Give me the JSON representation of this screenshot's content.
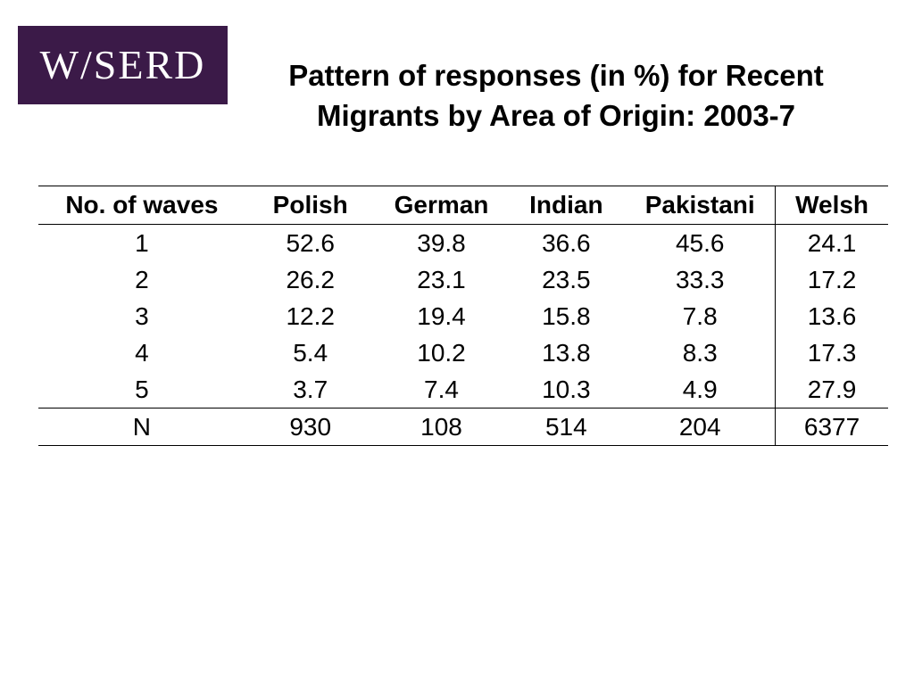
{
  "logo": {
    "text": "W/SERD"
  },
  "title": {
    "line1": "Pattern of responses (in %) for Recent",
    "line2": "Migrants by Area of Origin: 2003-7"
  },
  "table": {
    "headers": [
      "No. of waves",
      "Polish",
      "German",
      "Indian",
      "Pakistani",
      "Welsh"
    ],
    "rows": [
      [
        "1",
        "52.6",
        "39.8",
        "36.6",
        "45.6",
        "24.1"
      ],
      [
        "2",
        "26.2",
        "23.1",
        "23.5",
        "33.3",
        "17.2"
      ],
      [
        "3",
        "12.2",
        "19.4",
        "15.8",
        "7.8",
        "13.6"
      ],
      [
        "4",
        "5.4",
        "10.2",
        "13.8",
        "8.3",
        "17.3"
      ],
      [
        "5",
        "3.7",
        "7.4",
        "10.3",
        "4.9",
        "27.9"
      ]
    ],
    "total": [
      "N",
      "930",
      "108",
      "514",
      "204",
      "6377"
    ]
  },
  "colors": {
    "logo_background": "#3b1a48",
    "logo_text": "#ffffff"
  }
}
